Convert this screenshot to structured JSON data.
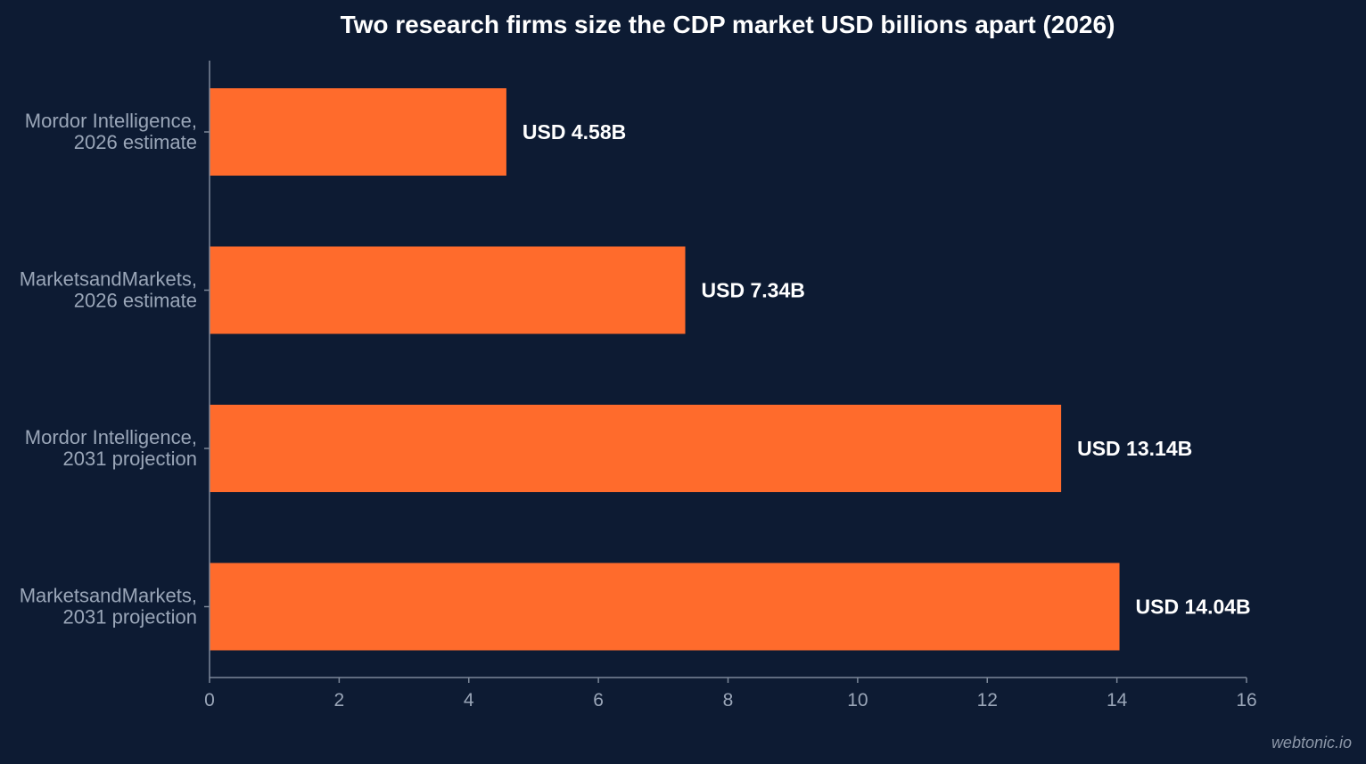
{
  "chart_data": {
    "type": "bar",
    "orientation": "horizontal",
    "title": "Two research firms size the CDP market USD billions apart (2026)",
    "categories": [
      [
        "Mordor Intelligence,",
        "2026 estimate"
      ],
      [
        "MarketsandMarkets,",
        "2026 estimate"
      ],
      [
        "Mordor Intelligence,",
        "2031 projection"
      ],
      [
        "MarketsandMarkets,",
        "2031 projection"
      ]
    ],
    "values": [
      4.58,
      7.34,
      13.14,
      14.04
    ],
    "data_labels": [
      "USD 4.58B",
      "USD 7.34B",
      "USD 13.14B",
      "USD 14.04B"
    ],
    "xlim": [
      0,
      16
    ],
    "xticks": [
      0,
      2,
      4,
      6,
      8,
      10,
      12,
      14,
      16
    ],
    "xlabel": "",
    "ylabel": "",
    "grid": false,
    "legend": "none",
    "colors": {
      "background": "#0d1b33",
      "bar": "#ff6b2c",
      "axis": "#7d8899",
      "label_text": "#9aa6b8",
      "title_text": "#ffffff"
    }
  },
  "watermark": "webtonic.io"
}
